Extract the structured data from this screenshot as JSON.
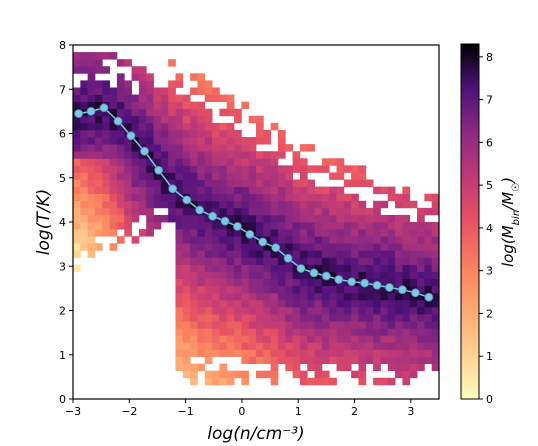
{
  "chart_data": {
    "type": "heatmap",
    "xlabel": "log(n/cm⁻³)",
    "ylabel": "log(T/K)",
    "xlim": [
      -3,
      3.5
    ],
    "ylim": [
      0,
      8
    ],
    "xticks": [
      -3,
      -2,
      -1,
      0,
      1,
      2,
      3
    ],
    "xtick_labels": [
      "−3",
      "−2",
      "−1",
      "0",
      "1",
      "2",
      "3"
    ],
    "yticks": [
      0,
      1,
      2,
      3,
      4,
      5,
      6,
      7,
      8
    ],
    "ytick_labels": [
      "0",
      "1",
      "2",
      "3",
      "4",
      "5",
      "6",
      "7",
      "8"
    ],
    "colorbar": {
      "label": "log(M_bin/M☉)",
      "range": [
        0,
        8.3
      ],
      "ticks": [
        0,
        1,
        2,
        3,
        4,
        5,
        6,
        7,
        8
      ],
      "tick_labels": [
        "0",
        "1",
        "2",
        "3",
        "4",
        "5",
        "6",
        "7",
        "8"
      ],
      "colormap": "magma_r"
    },
    "median_curve": {
      "color": "#7ec8e3",
      "x": [
        -2.9,
        -2.68,
        -2.45,
        -2.2,
        -1.97,
        -1.73,
        -1.48,
        -1.23,
        -0.98,
        -0.75,
        -0.52,
        -0.3,
        -0.08,
        0.14,
        0.37,
        0.6,
        0.82,
        1.05,
        1.28,
        1.5,
        1.72,
        1.95,
        2.18,
        2.4,
        2.62,
        2.85,
        3.08,
        3.32
      ],
      "y": [
        6.45,
        6.5,
        6.58,
        6.28,
        5.95,
        5.6,
        5.17,
        4.75,
        4.5,
        4.27,
        4.13,
        4.02,
        3.9,
        3.72,
        3.55,
        3.42,
        3.18,
        2.95,
        2.85,
        2.78,
        2.7,
        2.65,
        2.62,
        2.57,
        2.52,
        2.47,
        2.4,
        2.3
      ]
    }
  }
}
